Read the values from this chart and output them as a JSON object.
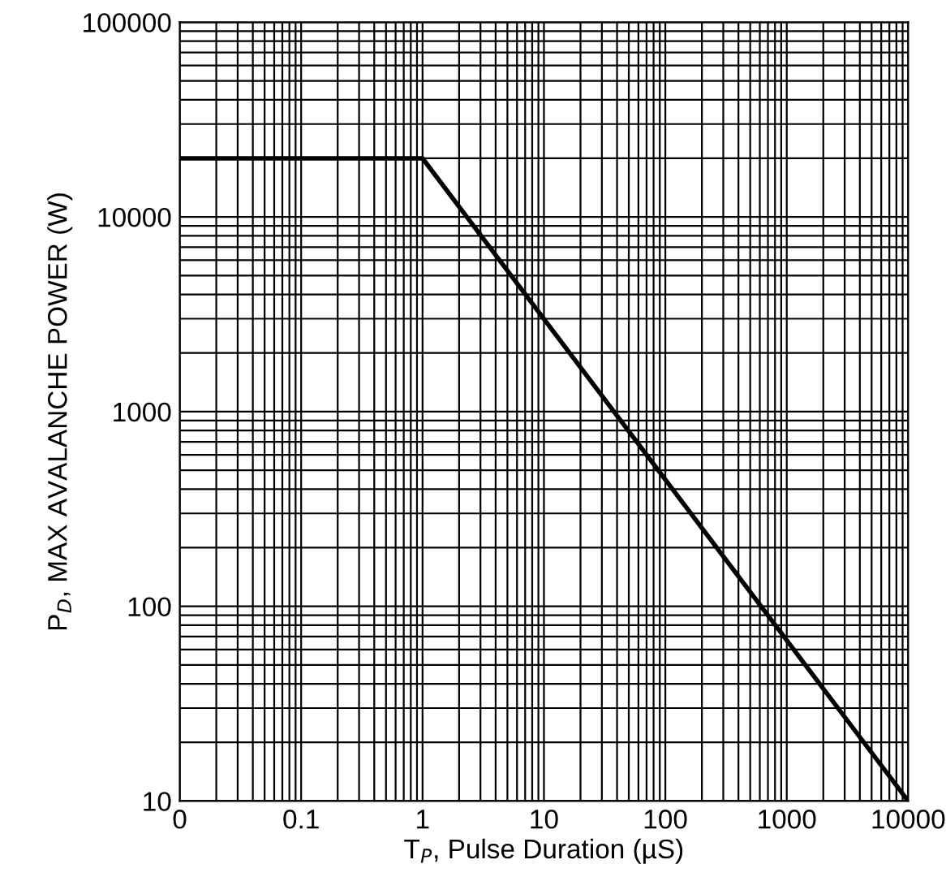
{
  "chart_data": {
    "type": "line",
    "xlabel": "T$_{P}$, Pulse Duration (µS)",
    "ylabel": "P$_{D}$, MAX AVALANCHE POWER (W)",
    "log": "xy",
    "grid": true,
    "marker": "none",
    "line_style": "solid",
    "legend": false,
    "x": [
      0.01,
      1,
      10000
    ],
    "series": [
      {
        "color": "#000000",
        "values": [
          20000,
          20000,
          10
        ]
      }
    ],
    "xlim": [
      0.01,
      10000
    ],
    "xticks": [
      {
        "value": 0.01,
        "label": "0"
      },
      0.1,
      1,
      10,
      100,
      1000,
      10000
    ],
    "ylim": [
      10,
      100000
    ],
    "yticks": [
      10,
      100,
      1000,
      10000,
      100000
    ]
  }
}
